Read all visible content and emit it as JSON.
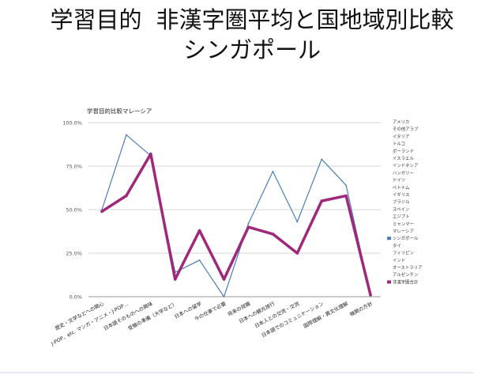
{
  "slide": {
    "title_line1a": "学習目的",
    "title_line1b": "非漢字圏平均と国地域別比較",
    "title_line2": "シンガポール"
  },
  "chart_data": {
    "type": "line",
    "title": "学習目的比較マレーシア",
    "xlabel": "",
    "ylabel": "",
    "ylim": [
      0,
      100
    ],
    "y_ticks": [
      "0.0%",
      "25.0%",
      "50.0%",
      "75.0%",
      "100.0%"
    ],
    "grid": true,
    "legend_position": "right",
    "categories": [
      "歴史・文学などへの関心",
      "J-POP、etc. マンガ・アニメ・J-POP…",
      "日本語そのものへの興味",
      "受験の準備（大学など）",
      "日本への留学",
      "今の仕事で必要",
      "将来の就職",
      "日本への観光旅行",
      "日本人との交流・交流",
      "日本語でのコミュニケーション",
      "国際理解・異文化理解",
      "機関の方針"
    ],
    "series": [
      {
        "name": "シンガポール",
        "color": "#4a7ebb",
        "values": [
          50,
          93,
          81,
          14,
          21,
          0,
          42,
          72,
          43,
          79,
          64,
          1
        ]
      },
      {
        "name": "非漢字圏合計",
        "color": "#a0287a",
        "values": [
          49,
          58,
          82,
          10,
          38,
          10,
          40,
          36,
          25,
          55,
          58,
          1
        ]
      }
    ],
    "legend": [
      {
        "name": "アメリカ",
        "color": ""
      },
      {
        "name": "その他アラブ",
        "color": ""
      },
      {
        "name": "イタリア",
        "color": ""
      },
      {
        "name": "トルコ",
        "color": ""
      },
      {
        "name": "ポーランド",
        "color": ""
      },
      {
        "name": "イスラエル",
        "color": ""
      },
      {
        "name": "インドネシア",
        "color": ""
      },
      {
        "name": "ハンガリー",
        "color": ""
      },
      {
        "name": "ドイツ",
        "color": ""
      },
      {
        "name": "ベトナム",
        "color": ""
      },
      {
        "name": "イギリス",
        "color": ""
      },
      {
        "name": "ブラジル",
        "color": ""
      },
      {
        "name": "スペイン",
        "color": ""
      },
      {
        "name": "エジプト",
        "color": ""
      },
      {
        "name": "ミャンマー",
        "color": ""
      },
      {
        "name": "マレーシア",
        "color": ""
      },
      {
        "name": "シンガポール",
        "color": "#4a7ebb"
      },
      {
        "name": "タイ",
        "color": ""
      },
      {
        "name": "フィリピン",
        "color": ""
      },
      {
        "name": "インド",
        "color": ""
      },
      {
        "name": "オーストラリア",
        "color": ""
      },
      {
        "name": "アルゼンチン",
        "color": ""
      },
      {
        "name": "非漢字圏合計",
        "color": "#a0287a"
      }
    ]
  }
}
